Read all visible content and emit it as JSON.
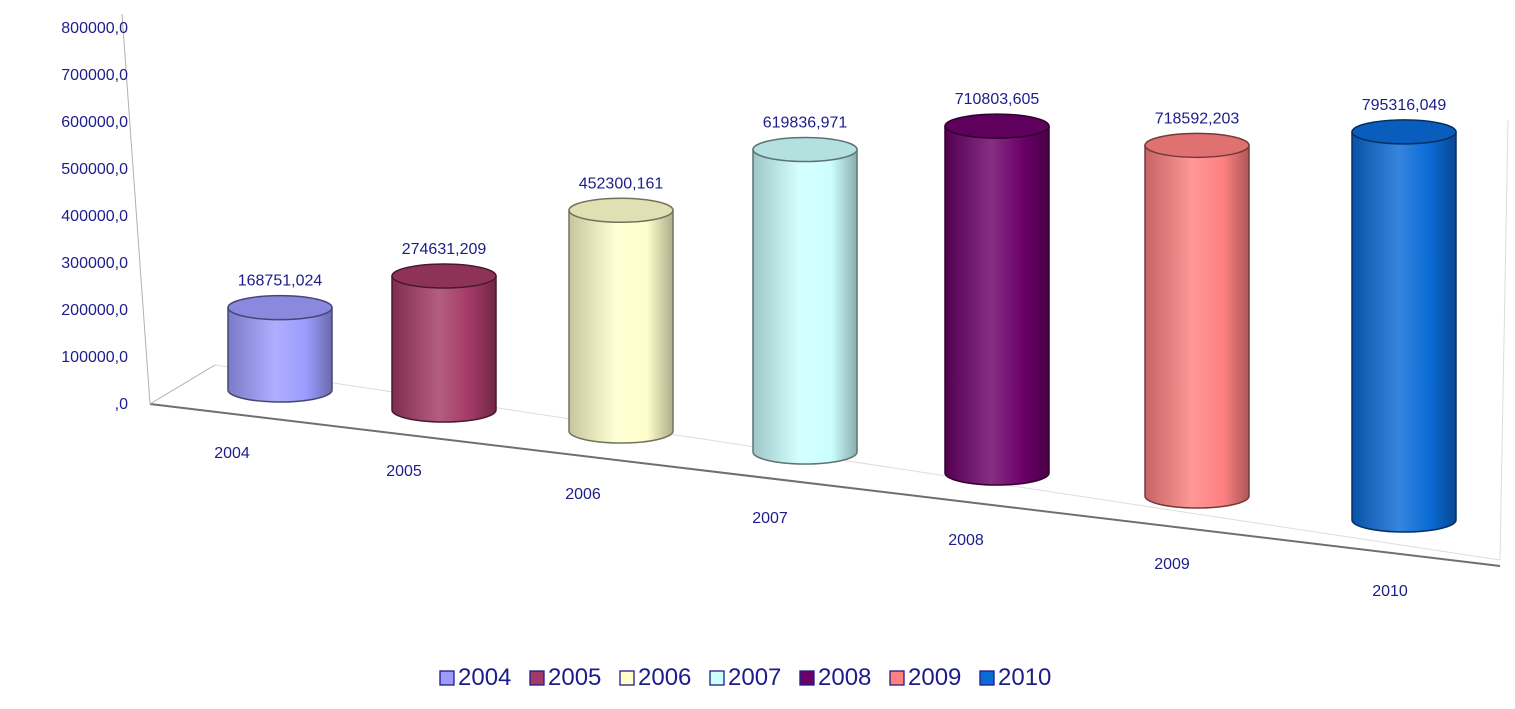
{
  "chart_data": {
    "type": "bar",
    "style": "3d-cylinder",
    "categories": [
      "2004",
      "2005",
      "2006",
      "2007",
      "2008",
      "2009",
      "2010"
    ],
    "values": [
      168751.024,
      274631.209,
      452300.161,
      619836.971,
      710803.605,
      718592.203,
      795316.049
    ],
    "data_labels": [
      "168751,024",
      "274631,209",
      "452300,161",
      "619836,971",
      "710803,605",
      "718592,203",
      "795316,049"
    ],
    "y_ticks": [
      ",0",
      "100000,0",
      "200000,0",
      "300000,0",
      "400000,0",
      "500000,0",
      "600000,0",
      "700000,0",
      "800000,0"
    ],
    "ylim": [
      0,
      800000
    ],
    "title": "",
    "xlabel": "",
    "ylabel": "",
    "grid": false,
    "legend_position": "bottom",
    "legend": [
      "2004",
      "2005",
      "2006",
      "2007",
      "2008",
      "2009",
      "2010"
    ],
    "colors": [
      "#9c9cff",
      "#a33966",
      "#ffffcc",
      "#ccffff",
      "#6b0068",
      "#ff8080",
      "#0a6ad6"
    ],
    "text_color": "#1c1c8c"
  }
}
